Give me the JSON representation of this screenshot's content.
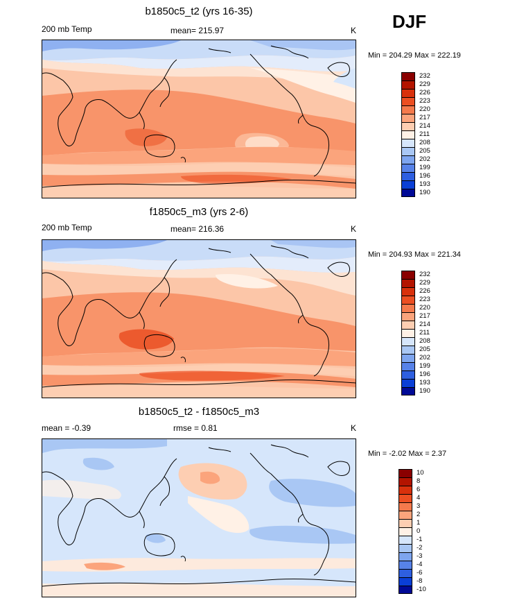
{
  "season": "DJF",
  "panels": [
    {
      "title": "b1850c5_t2 (yrs 16-35)",
      "left_label": "200 mb Temp",
      "center_label": "mean= 215.97",
      "units": "K",
      "minmax": "Min = 204.29 Max = 222.19",
      "colorbar": {
        "labels": [
          "232",
          "229",
          "226",
          "223",
          "220",
          "217",
          "214",
          "211",
          "208",
          "205",
          "202",
          "199",
          "196",
          "193",
          "190"
        ],
        "colors": [
          "#8a0000",
          "#b31400",
          "#d8310c",
          "#ec4f22",
          "#f57a4c",
          "#fba47c",
          "#fdceb2",
          "#fff1e6",
          "#d6e6fb",
          "#a9c7f4",
          "#7ea5ef",
          "#5782e8",
          "#2e5fe0",
          "#0a3fd6",
          "#000a96"
        ]
      }
    },
    {
      "title": "f1850c5_m3 (yrs 2-6)",
      "left_label": "200 mb Temp",
      "center_label": "mean= 216.36",
      "units": "K",
      "minmax": "Min = 204.93 Max = 221.34",
      "colorbar": {
        "labels": [
          "232",
          "229",
          "226",
          "223",
          "220",
          "217",
          "214",
          "211",
          "208",
          "205",
          "202",
          "199",
          "196",
          "193",
          "190"
        ],
        "colors": [
          "#8a0000",
          "#b31400",
          "#d8310c",
          "#ec4f22",
          "#f57a4c",
          "#fba47c",
          "#fdceb2",
          "#fff1e6",
          "#d6e6fb",
          "#a9c7f4",
          "#7ea5ef",
          "#5782e8",
          "#2e5fe0",
          "#0a3fd6",
          "#000a96"
        ]
      }
    },
    {
      "title": "b1850c5_t2 - f1850c5_m3",
      "left_label": "mean =  -0.39",
      "center_label": "rmse =  0.81",
      "units": "K",
      "minmax": "Min =  -2.02 Max =   2.37",
      "colorbar": {
        "labels": [
          "10",
          "8",
          "6",
          "4",
          "3",
          "2",
          "1",
          "0",
          "-1",
          "-2",
          "-3",
          "-4",
          "-6",
          "-8",
          "-10"
        ],
        "colors": [
          "#8a0000",
          "#b31400",
          "#d8310c",
          "#ec4f22",
          "#f57a4c",
          "#fba47c",
          "#fdceb2",
          "#fff1e6",
          "#d6e6fb",
          "#a9c7f4",
          "#7ea5ef",
          "#5782e8",
          "#2e5fe0",
          "#0a3fd6",
          "#000a96"
        ]
      }
    }
  ]
}
